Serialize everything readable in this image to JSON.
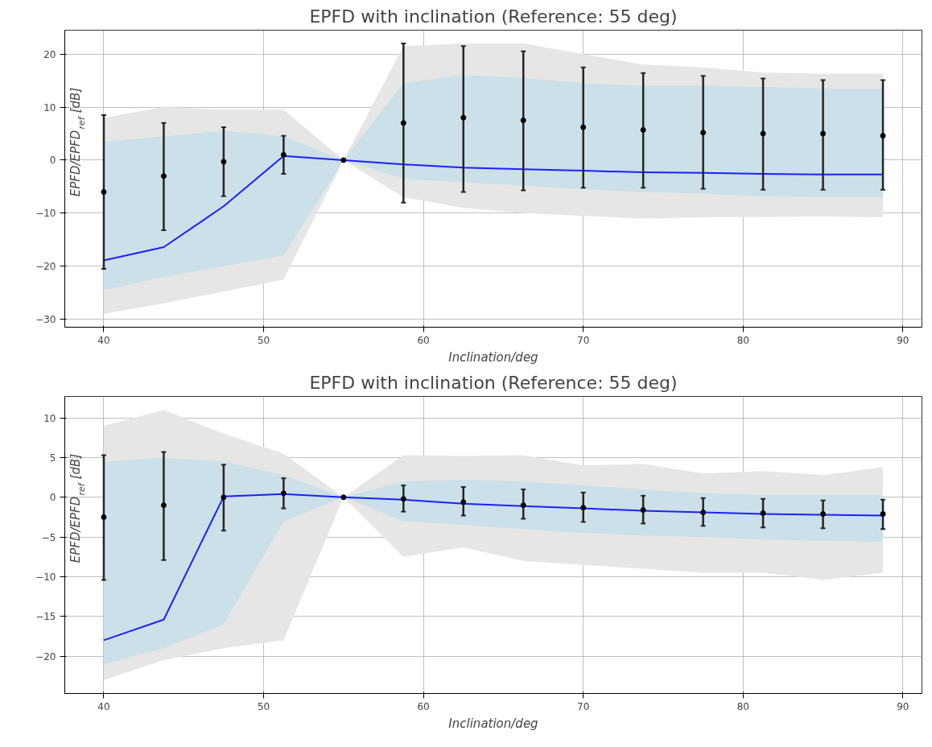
{
  "chart_data": [
    {
      "type": "line",
      "title": "EPFD with inclination (Reference: 55 deg)",
      "xlabel": "Inclination/deg",
      "ylabel": "EPFD/EPFD$_{ref}$ [dB]",
      "x": [
        40,
        43.75,
        47.5,
        51.25,
        55,
        58.75,
        62.5,
        66.25,
        70,
        73.75,
        77.5,
        81.25,
        85,
        88.75
      ],
      "xlim": [
        37.56,
        91.19
      ],
      "xticks": [
        40,
        50,
        60,
        70,
        80,
        90
      ],
      "ylim": [
        -31.5,
        24.5
      ],
      "yticks": [
        -30,
        -20,
        -10,
        0,
        10,
        20
      ],
      "grid": true,
      "series": [
        {
          "color": "#1f1fff",
          "values": [
            -18.9,
            -16.4,
            -8.7,
            0.8,
            0,
            -0.8,
            -1.4,
            -1.7,
            -2,
            -2.3,
            -2.4,
            -2.6,
            -2.7,
            -2.7
          ],
          "lower": [
            -24.5,
            -22,
            -20,
            -18,
            0,
            -3.5,
            -4.2,
            -4.8,
            -5.5,
            -6,
            -6.3,
            -6.8,
            -7,
            -7
          ],
          "upper": [
            3.5,
            4.5,
            5.5,
            4.5,
            0,
            14.5,
            16,
            15.5,
            14.5,
            14,
            14,
            13.8,
            13.5,
            13.5
          ]
        },
        {
          "type": "scatter",
          "color": "#000000",
          "marker": "circle",
          "values": [
            -6,
            -3,
            -0.3,
            1,
            0,
            7,
            8,
            7.5,
            6.2,
            5.7,
            5.2,
            5,
            5,
            4.6
          ],
          "errors": [
            [
              -20.5,
              8.5
            ],
            [
              -13.2,
              7
            ],
            [
              -6.8,
              6.2
            ],
            [
              -2.6,
              4.6
            ],
            null,
            [
              -8,
              22
            ],
            [
              -6,
              21.5
            ],
            [
              -5.7,
              20.5
            ],
            [
              -5.2,
              17.5
            ],
            [
              -5.2,
              16.4
            ],
            [
              -5.4,
              15.9
            ],
            [
              -5.6,
              15.4
            ],
            [
              -5.6,
              15.1
            ],
            [
              -5.6,
              15.1
            ]
          ],
          "lower": [
            -29,
            -27,
            -24.8,
            -22.5,
            0,
            -7,
            -9,
            -10,
            -10.5,
            -11,
            -10.8,
            -10.7,
            -10.6,
            -10.8
          ],
          "upper": [
            8,
            10,
            9.5,
            9.5,
            0,
            21.5,
            22,
            22,
            20,
            18,
            17.5,
            16.5,
            16.3,
            16.3
          ]
        }
      ]
    },
    {
      "type": "line",
      "title": "EPFD with inclination (Reference: 55 deg)",
      "xlabel": "Inclination/deg",
      "ylabel": "EPFD/EPFD$_{ref}$ [dB]",
      "x": [
        40,
        43.75,
        47.5,
        51.25,
        55,
        58.75,
        62.5,
        66.25,
        70,
        73.75,
        77.5,
        81.25,
        85,
        88.75
      ],
      "xlim": [
        37.56,
        91.19
      ],
      "xticks": [
        40,
        50,
        60,
        70,
        80,
        90
      ],
      "ylim": [
        -24.7,
        12.7
      ],
      "yticks": [
        -20,
        -15,
        -10,
        -5,
        0,
        5,
        10
      ],
      "grid": true,
      "series": [
        {
          "color": "#1f1fff",
          "values": [
            -18,
            -15.4,
            0.1,
            0.4,
            0,
            -0.3,
            -0.8,
            -1.1,
            -1.4,
            -1.7,
            -1.9,
            -2.1,
            -2.2,
            -2.3
          ],
          "lower": [
            -21,
            -19,
            -16,
            -3,
            0,
            -3,
            -3.5,
            -4,
            -4.5,
            -4.8,
            -5,
            -5.3,
            -5.5,
            -5.6
          ],
          "upper": [
            4.5,
            5,
            4.5,
            2.8,
            0,
            2,
            2.2,
            2,
            1.5,
            1,
            0.5,
            0.3,
            0.3,
            0.3
          ]
        },
        {
          "type": "scatter",
          "color": "#000000",
          "marker": "circle",
          "values": [
            -2.5,
            -1,
            0,
            0.5,
            0,
            -0.2,
            -0.6,
            -1,
            -1.3,
            -1.6,
            -1.9,
            -2,
            -2.1,
            -2.1
          ],
          "errors": [
            [
              -10.4,
              5.3
            ],
            [
              -7.9,
              5.7
            ],
            [
              -4.2,
              4.1
            ],
            [
              -1.4,
              2.4
            ],
            null,
            [
              -1.8,
              1.5
            ],
            [
              -2.3,
              1.3
            ],
            [
              -2.7,
              1
            ],
            [
              -3.1,
              0.6
            ],
            [
              -3.3,
              0.2
            ],
            [
              -3.6,
              -0.1
            ],
            [
              -3.8,
              -0.2
            ],
            [
              -3.9,
              -0.4
            ],
            [
              -4,
              -0.3
            ]
          ],
          "lower": [
            -23,
            -20.5,
            -19,
            -18,
            0,
            -7.5,
            -6.3,
            -8,
            -8.5,
            -9,
            -9.5,
            -9.5,
            -10.4,
            -9.5
          ],
          "upper": [
            9,
            11,
            8,
            5.5,
            0,
            5.3,
            5.2,
            5.3,
            4,
            4.2,
            3,
            3.3,
            2.8,
            3.8
          ]
        }
      ]
    }
  ]
}
